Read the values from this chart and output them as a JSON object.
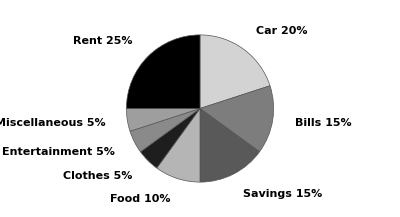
{
  "categories": [
    "Car",
    "Bills",
    "Savings",
    "Food",
    "Clothes",
    "Entertainment",
    "Miscellaneous",
    "Rent"
  ],
  "percentages": [
    20,
    15,
    15,
    10,
    5,
    5,
    5,
    25
  ],
  "colors": [
    "#d3d3d3",
    "#7d7d7d",
    "#595959",
    "#b5b5b5",
    "#1e1e1e",
    "#8a8a8a",
    "#9e9e9e",
    "#000000"
  ],
  "labels": [
    "Car 20%",
    "Bills 15%",
    "Savings 15%",
    "Food 10%",
    "Clothes 5%",
    "Entertainment 5%",
    "Miscellaneous 5%",
    "Rent 25%"
  ],
  "startangle": 90,
  "background_color": "#ffffff",
  "font_size": 8.0,
  "figsize": [
    4.0,
    2.17
  ],
  "dpi": 100,
  "edge_color": "#555555",
  "edge_width": 0.5
}
